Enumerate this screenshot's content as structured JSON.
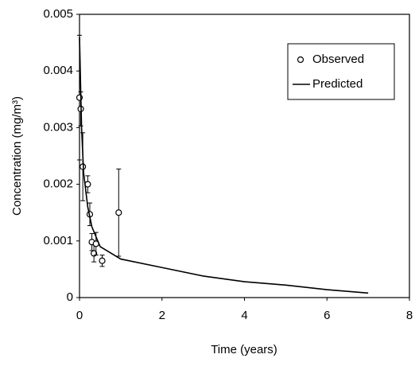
{
  "chart_data": {
    "type": "scatter-line",
    "xlabel": "Time (years)",
    "ylabel": "Concentration (mg/m³)",
    "xlim": [
      0,
      8
    ],
    "xticks": [
      0,
      2,
      4,
      6,
      8
    ],
    "ylim": [
      0,
      0.005
    ],
    "yticks": [
      0,
      0.001,
      0.002,
      0.003,
      0.004,
      0.005
    ],
    "legend": "upper right",
    "series": [
      {
        "name": "Observed",
        "type": "scatter",
        "color": "#000000",
        "x": [
          0.0,
          0.03,
          0.08,
          0.2,
          0.25,
          0.3,
          0.35,
          0.4,
          0.55,
          0.95
        ],
        "values": [
          0.00353,
          0.00333,
          0.00231,
          0.002,
          0.00147,
          0.00098,
          0.00078,
          0.00095,
          0.00065,
          0.0015
        ],
        "errors": [
          0.0011,
          0.0003,
          0.0006,
          0.00015,
          0.0002,
          0.00015,
          0.00015,
          0.0002,
          0.0001,
          0.00077
        ]
      },
      {
        "name": "Predicted",
        "type": "line",
        "color": "#000000",
        "x": [
          0,
          0.05,
          0.1,
          0.2,
          0.3,
          0.5,
          1,
          2,
          3,
          4,
          5,
          6,
          7
        ],
        "values": [
          0.0046,
          0.003,
          0.0022,
          0.0016,
          0.00125,
          0.0009,
          0.00068,
          0.00053,
          0.00038,
          0.00028,
          0.00022,
          0.00014,
          8e-05
        ]
      }
    ]
  }
}
